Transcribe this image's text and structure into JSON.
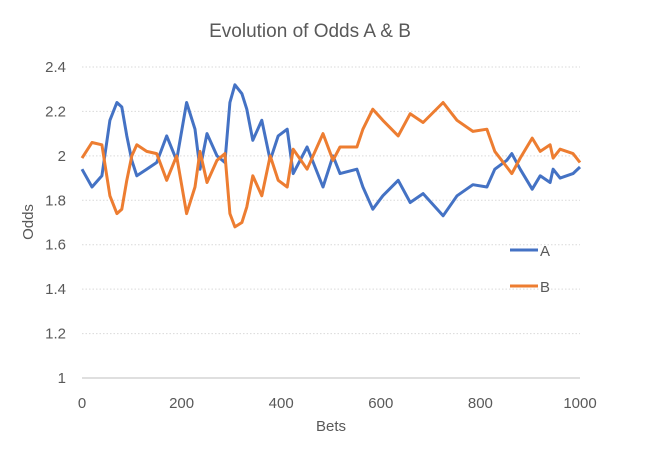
{
  "chart_data": {
    "type": "line",
    "title": "Evolution of Odds A & B",
    "xlabel": "Bets",
    "ylabel": "Odds",
    "xlim": [
      0,
      1000
    ],
    "ylim": [
      1,
      2.4
    ],
    "xticks": [
      "0",
      "200",
      "400",
      "600",
      "800",
      "1000"
    ],
    "yticks": [
      "1",
      "1.2",
      "1.4",
      "1.6",
      "1.8",
      "2",
      "2.2",
      "2.4"
    ],
    "grid": "horizontal dotted",
    "legend_position": "right",
    "x": [
      0,
      20,
      40,
      56,
      70,
      80,
      90,
      100,
      110,
      130,
      150,
      170,
      190,
      210,
      227,
      237,
      251,
      271,
      287,
      297,
      307,
      321,
      331,
      343,
      361,
      378,
      394,
      412,
      424,
      452,
      484,
      504,
      518,
      552,
      564,
      584,
      604,
      635,
      659,
      685,
      725,
      753,
      785,
      813,
      829,
      853,
      863,
      880,
      904,
      920,
      940,
      946,
      960,
      986,
      1000
    ],
    "series": [
      {
        "name": "A",
        "color": "#4472C4",
        "values": [
          1.94,
          1.86,
          1.91,
          2.16,
          2.24,
          2.22,
          2.09,
          1.98,
          1.91,
          1.94,
          1.97,
          2.09,
          1.98,
          2.24,
          2.12,
          1.94,
          2.1,
          2.0,
          1.97,
          2.24,
          2.32,
          2.28,
          2.21,
          2.07,
          2.16,
          1.98,
          2.09,
          2.12,
          1.92,
          2.04,
          1.86,
          2.0,
          1.92,
          1.94,
          1.86,
          1.76,
          1.82,
          1.89,
          1.79,
          1.83,
          1.73,
          1.82,
          1.87,
          1.86,
          1.94,
          1.98,
          2.01,
          1.94,
          1.85,
          1.91,
          1.88,
          1.94,
          1.9,
          1.92,
          1.95
        ]
      },
      {
        "name": "B",
        "color": "#ED7D31",
        "values": [
          1.99,
          2.06,
          2.05,
          1.82,
          1.74,
          1.76,
          1.89,
          2.0,
          2.05,
          2.02,
          2.01,
          1.89,
          2.0,
          1.74,
          1.86,
          2.02,
          1.88,
          1.98,
          2.01,
          1.74,
          1.68,
          1.7,
          1.77,
          1.91,
          1.82,
          2.0,
          1.89,
          1.86,
          2.03,
          1.94,
          2.1,
          1.98,
          2.04,
          2.04,
          2.12,
          2.21,
          2.16,
          2.09,
          2.19,
          2.15,
          2.24,
          2.16,
          2.11,
          2.12,
          2.02,
          1.95,
          1.92,
          1.99,
          2.08,
          2.02,
          2.05,
          1.99,
          2.03,
          2.01,
          1.97
        ]
      }
    ]
  }
}
